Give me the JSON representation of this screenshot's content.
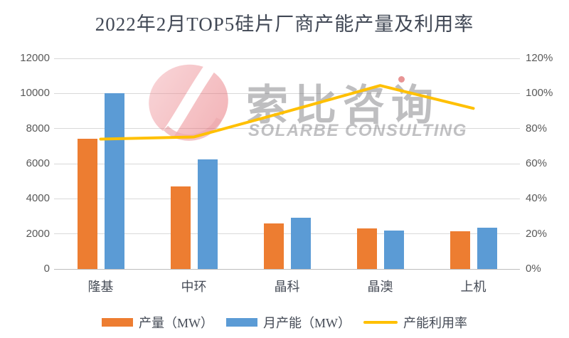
{
  "title": "2022年2月TOP5硅片厂商产能产量及利用率",
  "watermark": {
    "cn": "索比咨询",
    "en": "SOLARBE CONSULTING"
  },
  "chart_data": {
    "type": "bar",
    "subtype": "grouped-bars-with-line",
    "title": "2022年2月TOP5硅片厂商产能产量及利用率",
    "categories": [
      "隆基",
      "中环",
      "晶科",
      "晶澳",
      "上机"
    ],
    "series": [
      {
        "name": "产量（MW）",
        "type": "bar",
        "axis": "left",
        "color": "#ED7D31",
        "values": [
          7400,
          4700,
          2600,
          2300,
          2150
        ]
      },
      {
        "name": "月产能（MW）",
        "type": "bar",
        "axis": "left",
        "color": "#5B9BD5",
        "values": [
          10000,
          6250,
          2900,
          2200,
          2350
        ]
      },
      {
        "name": "产能利用率",
        "type": "line",
        "axis": "right",
        "color": "#FFC000",
        "unit": "%",
        "values": [
          74.0,
          75.2,
          89.7,
          104.5,
          91.5
        ]
      }
    ],
    "left_axis": {
      "min": 0,
      "max": 12000,
      "step": 2000,
      "ticks": [
        "0",
        "2000",
        "4000",
        "6000",
        "8000",
        "10000",
        "12000"
      ]
    },
    "right_axis": {
      "min": 0,
      "max": 120,
      "step": 20,
      "ticks": [
        "0%",
        "20%",
        "40%",
        "60%",
        "80%",
        "100%",
        "120%"
      ]
    },
    "grid": true,
    "legend_position": "bottom",
    "colors": {
      "grid": "#d9d9d9",
      "axis_base": "#bdbdbd",
      "tick_label": "#595959",
      "category_label": "#454b56",
      "title": "#414855"
    }
  }
}
